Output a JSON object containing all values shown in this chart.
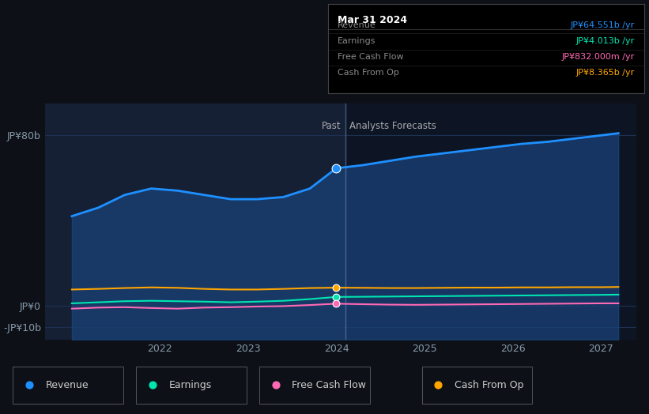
{
  "bg_color": "#0d1117",
  "plot_bg_color": "#0d1b2e",
  "past_bg_color": "#152035",
  "forecast_bg_color": "#0d1525",
  "grid_color": "#1e3050",
  "x_years": [
    2021.0,
    2021.3,
    2021.6,
    2021.9,
    2022.2,
    2022.5,
    2022.8,
    2023.1,
    2023.4,
    2023.7,
    2024.0,
    2024.3,
    2024.6,
    2024.9,
    2025.2,
    2025.5,
    2025.8,
    2026.1,
    2026.4,
    2026.7,
    2027.0,
    2027.2
  ],
  "revenue": [
    42,
    46,
    52,
    55,
    54,
    52,
    50,
    50,
    51,
    55,
    64.551,
    66,
    68,
    70,
    71.5,
    73,
    74.5,
    76,
    77,
    78.5,
    80,
    81
  ],
  "earnings": [
    1.0,
    1.5,
    2.0,
    2.2,
    2.0,
    1.8,
    1.5,
    1.8,
    2.2,
    3.0,
    4.013,
    4.1,
    4.2,
    4.3,
    4.4,
    4.5,
    4.6,
    4.7,
    4.8,
    4.9,
    5.0,
    5.1
  ],
  "free_cash_flow": [
    -1.5,
    -1.0,
    -0.8,
    -1.2,
    -1.5,
    -1.0,
    -0.8,
    -0.5,
    -0.3,
    0.2,
    0.832,
    0.6,
    0.4,
    0.3,
    0.4,
    0.5,
    0.6,
    0.7,
    0.8,
    0.9,
    1.0,
    1.0
  ],
  "cash_from_op": [
    7.5,
    7.8,
    8.2,
    8.5,
    8.3,
    7.8,
    7.5,
    7.5,
    7.8,
    8.2,
    8.365,
    8.3,
    8.2,
    8.2,
    8.3,
    8.4,
    8.4,
    8.5,
    8.5,
    8.6,
    8.6,
    8.7
  ],
  "divider_x": 2024.1,
  "revenue_color": "#1e90ff",
  "earnings_color": "#00e5b0",
  "fcf_color": "#ff69b4",
  "cashop_color": "#ffa500",
  "yticks": [
    -10,
    0,
    80
  ],
  "ylabels": [
    "-JP¥10b",
    "JP¥0",
    "JP¥80b"
  ],
  "ylim": [
    -16,
    95
  ],
  "xlim": [
    2020.7,
    2027.4
  ],
  "xticks": [
    2022,
    2023,
    2024,
    2025,
    2026,
    2027
  ],
  "tooltip": {
    "title": "Mar 31 2024",
    "rows": [
      {
        "label": "Revenue",
        "value": "JP¥64.551b /yr",
        "color": "#1e90ff"
      },
      {
        "label": "Earnings",
        "value": "JP¥4.013b /yr",
        "color": "#00e5b0"
      },
      {
        "label": "Free Cash Flow",
        "value": "JP¥832.000m /yr",
        "color": "#ff69b4"
      },
      {
        "label": "Cash From Op",
        "value": "JP¥8.365b /yr",
        "color": "#ffa500"
      }
    ]
  },
  "legend_items": [
    {
      "label": "Revenue",
      "color": "#1e90ff"
    },
    {
      "label": "Earnings",
      "color": "#00e5b0"
    },
    {
      "label": "Free Cash Flow",
      "color": "#ff69b4"
    },
    {
      "label": "Cash From Op",
      "color": "#ffa500"
    }
  ]
}
